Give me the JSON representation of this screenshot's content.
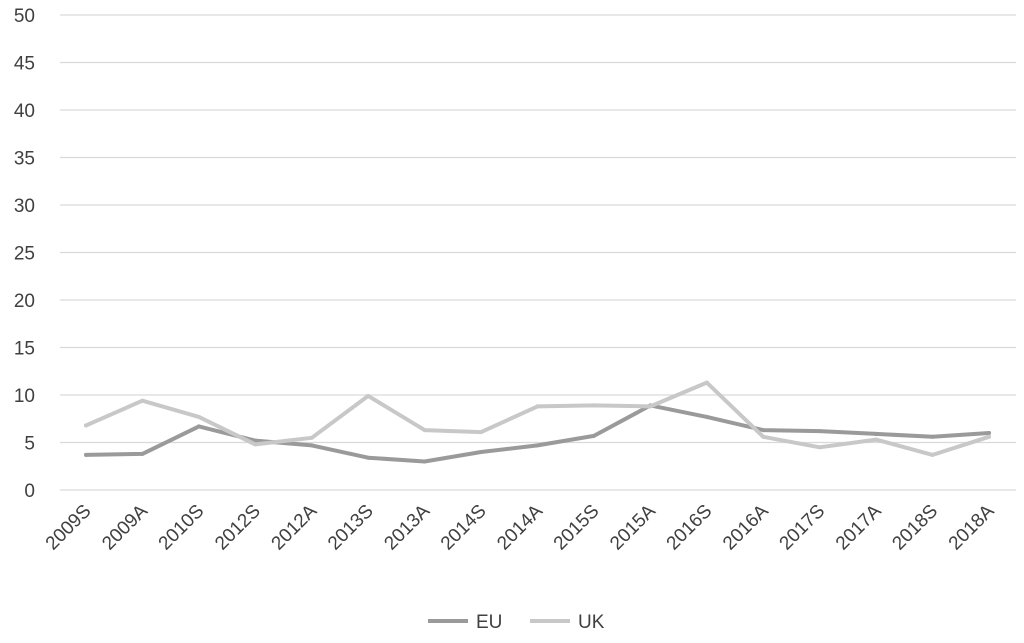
{
  "chart_data": {
    "type": "line",
    "categories": [
      "2009S",
      "2009A",
      "2010S",
      "2012S",
      "2012A",
      "2013S",
      "2013A",
      "2014S",
      "2014A",
      "2015S",
      "2015A",
      "2016S",
      "2016A",
      "2017S",
      "2017A",
      "2018S",
      "2018A"
    ],
    "series": [
      {
        "name": "EU",
        "color": "#9a9a9a",
        "values": [
          3.7,
          3.8,
          6.7,
          5.2,
          4.7,
          3.4,
          3.0,
          4.0,
          4.7,
          5.7,
          8.9,
          7.7,
          6.3,
          6.2,
          5.9,
          5.6,
          6.0
        ]
      },
      {
        "name": "UK",
        "color": "#c8c8c8",
        "values": [
          6.8,
          9.4,
          7.7,
          4.8,
          5.5,
          9.9,
          6.3,
          6.1,
          8.8,
          8.9,
          8.8,
          11.3,
          5.6,
          4.5,
          5.3,
          3.7,
          5.6
        ]
      }
    ],
    "ylim": [
      0,
      50
    ],
    "yticks": [
      0,
      5,
      10,
      15,
      20,
      25,
      30,
      35,
      40,
      45,
      50
    ],
    "grid": true,
    "legend_position": "bottom"
  }
}
